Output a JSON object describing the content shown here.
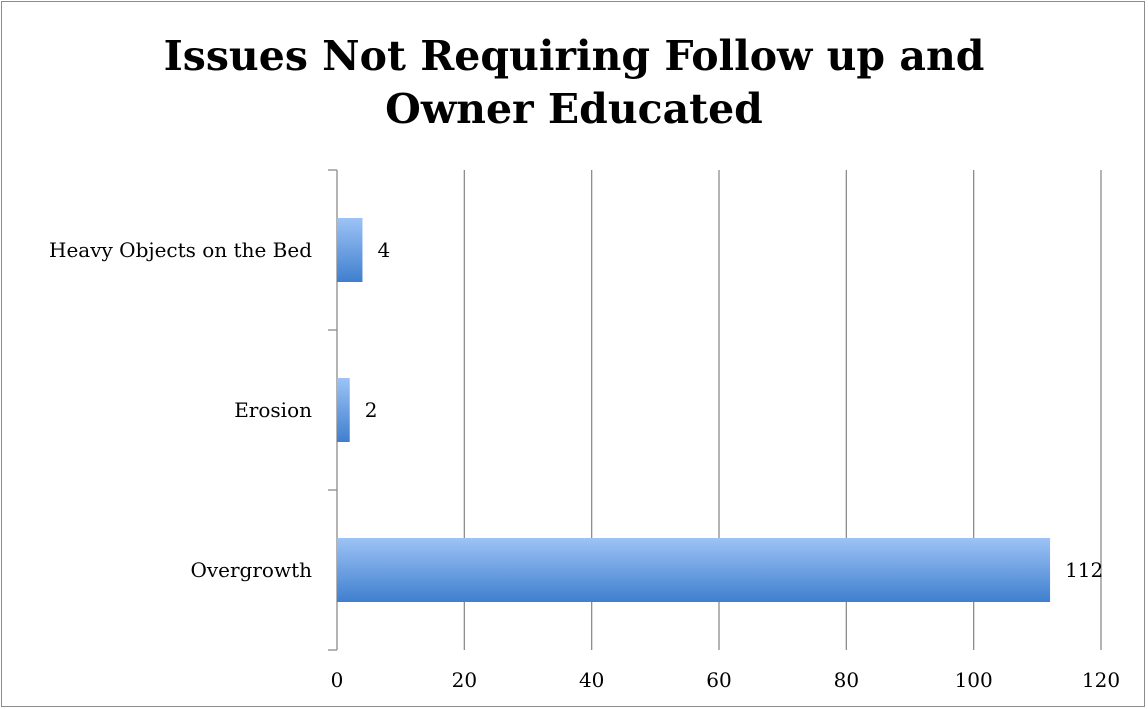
{
  "chart_data": {
    "type": "bar",
    "orientation": "horizontal",
    "title": [
      "Issues Not Requiring Follow up and",
      "Owner Educated"
    ],
    "categories": [
      "Heavy Objects on the Bed",
      "Erosion",
      "Overgrowth"
    ],
    "values": [
      4,
      2,
      112
    ],
    "data_labels": [
      "4",
      "2",
      "112"
    ],
    "xlim": [
      0,
      120
    ],
    "x_ticks": [
      0,
      20,
      40,
      60,
      80,
      100,
      120
    ],
    "xlabel": "",
    "ylabel": "",
    "grid": "vertical",
    "legend": "none",
    "colors": {
      "bar_top": "#9dc3f6",
      "bar_bottom": "#3f7fcf",
      "grid": "#8c8c8c",
      "axis": "#8c8c8c"
    }
  }
}
